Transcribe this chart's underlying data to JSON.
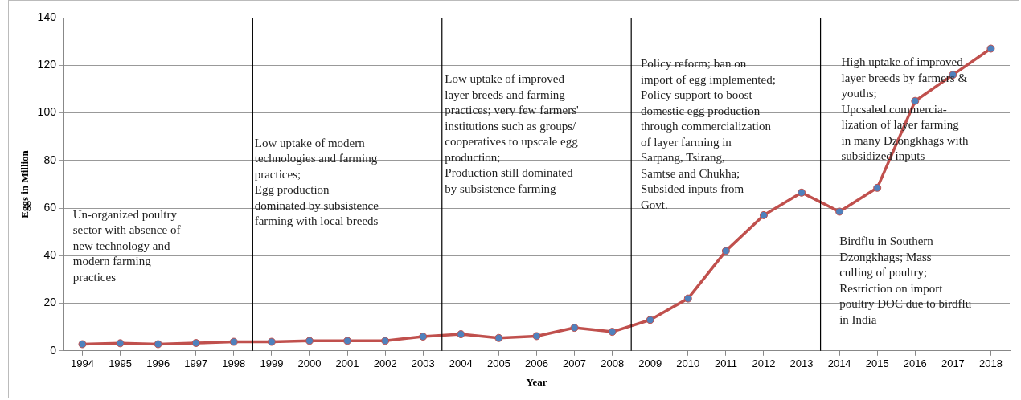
{
  "chart_data": {
    "type": "line",
    "xlabel": "Year",
    "ylabel": "Eggs in Million",
    "x": [
      1994,
      1995,
      1996,
      1997,
      1998,
      1999,
      2000,
      2001,
      2002,
      2003,
      2004,
      2005,
      2006,
      2007,
      2008,
      2009,
      2010,
      2011,
      2012,
      2013,
      2014,
      2015,
      2016,
      2017,
      2018
    ],
    "series": [
      {
        "color": "#c0504d",
        "values": [
          2.8,
          3.2,
          2.8,
          3.3,
          3.8,
          3.8,
          4.2,
          4.2,
          4.2,
          6,
          7,
          5.4,
          6.2,
          9.7,
          8,
          13,
          22,
          42,
          57,
          66.5,
          58.5,
          68.5,
          105,
          116,
          127
        ]
      }
    ],
    "marker": "circle",
    "line_style": "solid",
    "grid": "y",
    "legend": false,
    "xlim": [
      1993.5,
      2018.5
    ],
    "xticks": [
      1994,
      1995,
      1996,
      1997,
      1998,
      1999,
      2000,
      2001,
      2002,
      2003,
      2004,
      2005,
      2006,
      2007,
      2008,
      2009,
      2010,
      2011,
      2012,
      2013,
      2014,
      2015,
      2016,
      2017,
      2018
    ],
    "ylim": [
      0,
      140
    ],
    "yticks": [
      0,
      20,
      40,
      60,
      80,
      100,
      120,
      140
    ],
    "ref_lines": [
      {
        "axis": "x",
        "value": 1998.5,
        "color": "#000000"
      },
      {
        "axis": "x",
        "value": 2003.5,
        "color": "#000000"
      },
      {
        "axis": "x",
        "value": 2008.5,
        "color": "#000000"
      },
      {
        "axis": "x",
        "value": 2013.5,
        "color": "#000000"
      }
    ],
    "annotations": [
      "Un-organized poultry\nsector with absence of\nnew technology and\nmodern farming\npractices",
      "Low uptake of modern\ntechnologies and farming\npractices;\nEgg production\ndominated by subsistence\nfarming with local breeds",
      "Low uptake of improved\nlayer breeds and farming\npractices; very few farmers'\ninstitutions such as groups/\ncooperatives to upscale egg\nproduction;\nProduction still dominated\nby subsistence farming",
      "Policy reform; ban on\nimport of egg implemented;\nPolicy support to boost\ndomestic egg production\nthrough commercialization\nof layer farming in\nSarpang, Tsirang,\nSamtse and Chukha;\nSubsided inputs from\nGovt.",
      "High uptake of improved\nlayer breeds by farmers &\nyouths;\nUpcsaled commercia-\nlization of layer farming\nin many Dzongkhags with\nsubsidized inputs",
      "Birdflu in Southern\nDzongkhags; Mass\nculling of poultry;\nRestriction on import\npoultry DOC due to birdflu\nin India"
    ]
  }
}
